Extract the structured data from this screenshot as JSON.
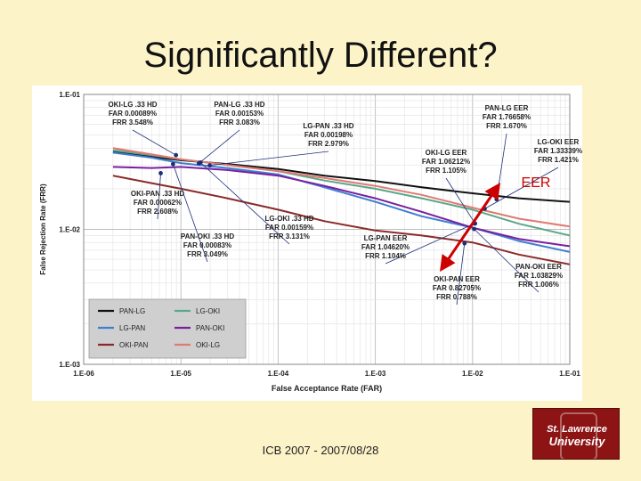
{
  "slide": {
    "title": "Significantly Different?",
    "footer": "ICB 2007 - 2007/08/28",
    "logo": {
      "line1": "St. Lawrence",
      "line2": "University"
    },
    "eer_label": "EER"
  },
  "colors": {
    "background": "#fdf3c8",
    "eer_arrow": "#cc0000",
    "logo": "#8c1414"
  },
  "chart_data": {
    "type": "line",
    "title": "",
    "xlabel": "False Acceptance Rate (FAR)",
    "ylabel": "False Rejection Rate (FRR)",
    "x_scale": "log",
    "y_scale": "log",
    "xlim": [
      1e-06,
      0.1
    ],
    "ylim": [
      0.001,
      0.1
    ],
    "x_ticks": [
      "1.E-06",
      "1.E-05",
      "1.E-04",
      "1.E-03",
      "1.E-02",
      "1.E-01"
    ],
    "y_ticks": [
      "1.E-03",
      "1.E-02",
      "1.E-01"
    ],
    "grid": true,
    "legend_position": "bottom-left",
    "series": [
      {
        "name": "PAN-LG",
        "color": "#111111",
        "points": [
          [
            2e-06,
            0.0375
          ],
          [
            5e-06,
            0.0345
          ],
          [
            1e-05,
            0.0325
          ],
          [
            3e-05,
            0.0305
          ],
          [
            0.0001,
            0.028
          ],
          [
            0.0003,
            0.025
          ],
          [
            0.001,
            0.0228
          ],
          [
            0.003,
            0.0205
          ],
          [
            0.01,
            0.0185
          ],
          [
            0.03,
            0.017
          ],
          [
            0.1,
            0.016
          ]
        ]
      },
      {
        "name": "LG-OKI",
        "color": "#5aa88a",
        "points": [
          [
            2e-06,
            0.0385
          ],
          [
            5e-06,
            0.0355
          ],
          [
            1e-05,
            0.033
          ],
          [
            3e-05,
            0.03
          ],
          [
            0.0001,
            0.027
          ],
          [
            0.0003,
            0.023
          ],
          [
            0.001,
            0.02
          ],
          [
            0.003,
            0.017
          ],
          [
            0.01,
            0.014
          ],
          [
            0.03,
            0.011
          ],
          [
            0.1,
            0.009
          ]
        ]
      },
      {
        "name": "LG-PAN",
        "color": "#3d7fd1",
        "points": [
          [
            2e-06,
            0.037
          ],
          [
            5e-06,
            0.034
          ],
          [
            1e-05,
            0.031
          ],
          [
            3e-05,
            0.0285
          ],
          [
            0.0001,
            0.0255
          ],
          [
            0.0003,
            0.0205
          ],
          [
            0.001,
            0.016
          ],
          [
            0.003,
            0.0125
          ],
          [
            0.01,
            0.0103
          ],
          [
            0.03,
            0.0082
          ],
          [
            0.1,
            0.0068
          ]
        ]
      },
      {
        "name": "PAN-OKI",
        "color": "#7a1fa0",
        "points": [
          [
            2e-06,
            0.029
          ],
          [
            5e-06,
            0.0285
          ],
          [
            1e-05,
            0.029
          ],
          [
            3e-05,
            0.0275
          ],
          [
            0.0001,
            0.025
          ],
          [
            0.0003,
            0.021
          ],
          [
            0.001,
            0.017
          ],
          [
            0.003,
            0.0135
          ],
          [
            0.01,
            0.0103
          ],
          [
            0.03,
            0.0085
          ],
          [
            0.1,
            0.0075
          ]
        ]
      },
      {
        "name": "OKI-PAN",
        "color": "#8b2a2a",
        "points": [
          [
            2e-06,
            0.025
          ],
          [
            5e-06,
            0.022
          ],
          [
            1e-05,
            0.02
          ],
          [
            3e-05,
            0.017
          ],
          [
            0.0001,
            0.014
          ],
          [
            0.0003,
            0.0115
          ],
          [
            0.001,
            0.0098
          ],
          [
            0.003,
            0.009
          ],
          [
            0.01,
            0.008
          ],
          [
            0.03,
            0.0065
          ],
          [
            0.1,
            0.0055
          ]
        ]
      },
      {
        "name": "OKI-LG",
        "color": "#e07a72",
        "points": [
          [
            2e-06,
            0.04
          ],
          [
            5e-06,
            0.036
          ],
          [
            1e-05,
            0.033
          ],
          [
            3e-05,
            0.03
          ],
          [
            0.0001,
            0.027
          ],
          [
            0.0003,
            0.024
          ],
          [
            0.001,
            0.021
          ],
          [
            0.003,
            0.018
          ],
          [
            0.01,
            0.0145
          ],
          [
            0.03,
            0.012
          ],
          [
            0.1,
            0.0105
          ]
        ]
      }
    ],
    "annotations": [
      {
        "lines": [
          "OKI-LG .33 HD",
          "FAR 0.00089%",
          "FRR 3.548%"
        ]
      },
      {
        "lines": [
          "PAN-LG .33 HD",
          "FAR 0.00153%",
          "FRR 3.083%"
        ]
      },
      {
        "lines": [
          "LG-PAN .33 HD",
          "FAR 0.00198%",
          "FRR 2.979%"
        ]
      },
      {
        "lines": [
          "OKI-PAN .33 HD",
          "FAR 0.00062%",
          "FRR 2.608%"
        ]
      },
      {
        "lines": [
          "PAN-OKI .33 HD",
          "FAR 0.00083%",
          "FRR 3.049%"
        ]
      },
      {
        "lines": [
          "LG-OKI .33 HD",
          "FAR 0.00159%",
          "FRR 3.131%"
        ]
      },
      {
        "lines": [
          "PAN-LG EER",
          "FAR 1.76658%",
          "FRR 1.670%"
        ]
      },
      {
        "lines": [
          "LG-OKI EER",
          "FAR 1.33339%",
          "FRR 1.421%"
        ]
      },
      {
        "lines": [
          "OKI-LG EER",
          "FAR 1.06212%",
          "FRR 1.105%"
        ]
      },
      {
        "lines": [
          "LG-PAN EER",
          "FAR 1.04620%",
          "FRR 1.104%"
        ]
      },
      {
        "lines": [
          "PAN-OKI EER",
          "FAR 1.03829%",
          "FRR 1.006%"
        ]
      },
      {
        "lines": [
          "OKI-PAN EER",
          "FAR 0.82705%",
          "FRR 0.788%"
        ]
      }
    ]
  }
}
